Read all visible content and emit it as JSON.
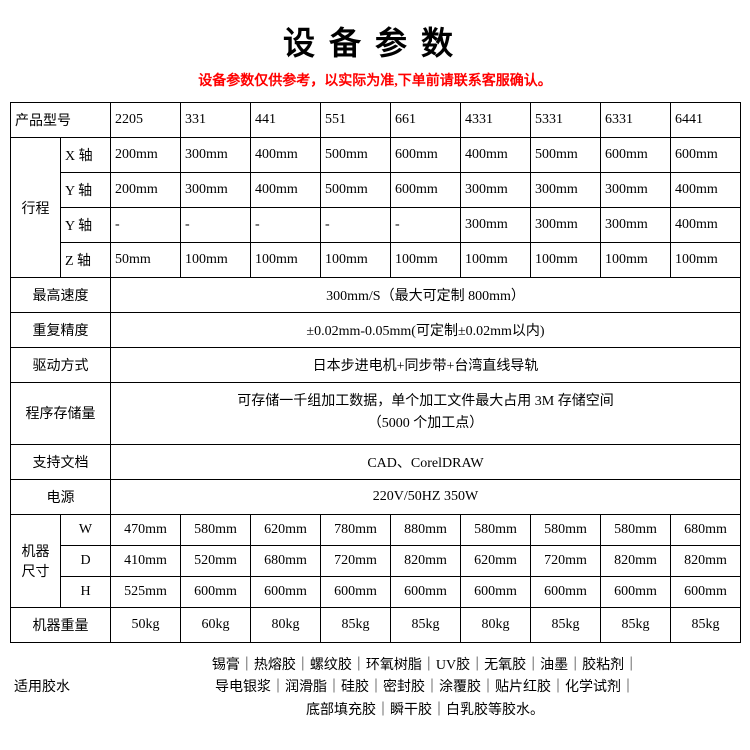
{
  "title": "设备参数",
  "subtitle": "设备参数仅供参考，以实际为准,下单前请联系客服确认。",
  "labels": {
    "model": "产品型号",
    "stroke": "行程",
    "axis_x": "X 轴",
    "axis_y": "Y 轴",
    "axis_y2": "Y 轴",
    "axis_z": "Z 轴",
    "max_speed": "最高速度",
    "repeat": "重复精度",
    "drive": "驱动方式",
    "storage": "程序存储量",
    "docs": "支持文档",
    "power": "电源",
    "size": "机器尺寸",
    "dim_w": "W",
    "dim_d": "D",
    "dim_h": "H",
    "weight": "机器重量",
    "glue": "适用胶水"
  },
  "models": [
    "2205",
    "331",
    "441",
    "551",
    "661",
    "4331",
    "5331",
    "6331",
    "6441"
  ],
  "stroke": {
    "x": [
      "200mm",
      "300mm",
      "400mm",
      "500mm",
      "600mm",
      "400mm",
      "500mm",
      "600mm",
      "600mm"
    ],
    "y": [
      "200mm",
      "300mm",
      "400mm",
      "500mm",
      "600mm",
      "300mm",
      "300mm",
      "300mm",
      "400mm"
    ],
    "y2": [
      "-",
      "-",
      "-",
      "-",
      "-",
      "300mm",
      "300mm",
      "300mm",
      "400mm"
    ],
    "z": [
      "50mm",
      "100mm",
      "100mm",
      "100mm",
      "100mm",
      "100mm",
      "100mm",
      "100mm",
      "100mm"
    ]
  },
  "max_speed": "300mm/S（最大可定制 800mm）",
  "repeat": "±0.02mm-0.05mm(可定制±0.02mm以内)",
  "drive": "日本步进电机+同步带+台湾直线导轨",
  "storage_l1": "可存储一千组加工数据，单个加工文件最大占用 3M 存储空间",
  "storage_l2": "（5000 个加工点）",
  "docs": "CAD、CorelDRAW",
  "power": "220V/50HZ 350W",
  "dims": {
    "w": [
      "470mm",
      "580mm",
      "620mm",
      "780mm",
      "880mm",
      "580mm",
      "580mm",
      "580mm",
      "680mm"
    ],
    "d": [
      "410mm",
      "520mm",
      "680mm",
      "720mm",
      "820mm",
      "620mm",
      "720mm",
      "820mm",
      "820mm"
    ],
    "h": [
      "525mm",
      "600mm",
      "600mm",
      "600mm",
      "600mm",
      "600mm",
      "600mm",
      "600mm",
      "600mm"
    ]
  },
  "weight": [
    "50kg",
    "60kg",
    "80kg",
    "85kg",
    "85kg",
    "80kg",
    "85kg",
    "85kg",
    "85kg"
  ],
  "glue_l1": "锡膏｜热熔胶｜螺纹胶｜环氧树脂｜UV胶｜无氧胶｜油墨｜胶粘剂｜",
  "glue_l2": "导电银浆｜润滑脂｜硅胶｜密封胶｜涂覆胶｜贴片红胶｜化学试剂｜",
  "glue_l3": "底部填充胶｜瞬干胶｜白乳胶等胶水。",
  "style": {
    "title_color": "#000000",
    "subtitle_color": "#ff0000",
    "border_color": "#000000",
    "bg": "#ffffff",
    "title_fontsize": 32,
    "body_fontsize": 14
  }
}
